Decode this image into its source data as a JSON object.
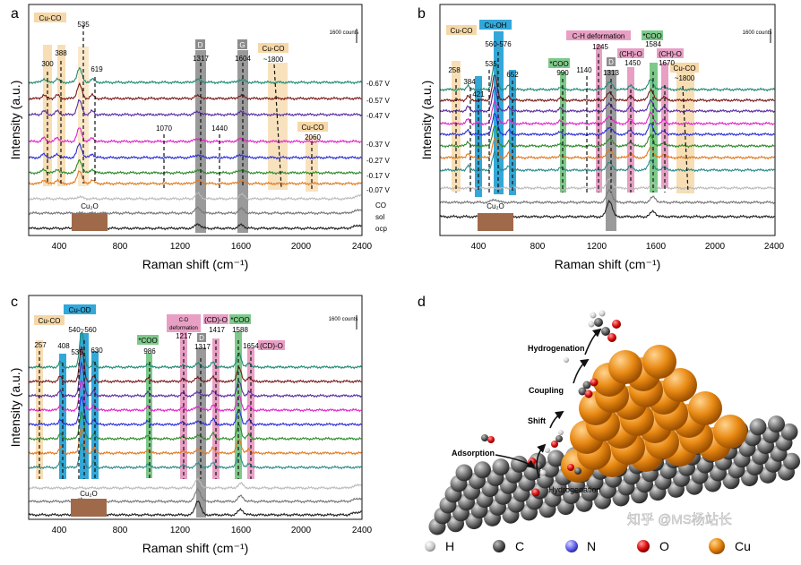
{
  "panels": {
    "a": {
      "label": "a",
      "xlabel": "Raman shift (cm⁻¹)",
      "ylabel": "Intensity (a.u.)",
      "scalebar": "1600 counts",
      "ticks": [
        "400",
        "800",
        "1200",
        "1600",
        "2000",
        "2400"
      ],
      "potentials": [
        "-0.67 V",
        "-0.57 V",
        "-0.47 V",
        "-0.37 V",
        "-0.27 V",
        "-0.17 V",
        "-0.07 V",
        "CO",
        "sol",
        "ocp"
      ],
      "tags": {
        "cuco1": "Cu-CO",
        "d": "D",
        "g": "G",
        "cuco2": "Cu-CO",
        "cuco3": "Cu-CO",
        "cu2o": "Cu₂O"
      },
      "peaks": [
        "300",
        "388",
        "535",
        "619",
        "1070",
        "1317",
        "1440",
        "1604",
        "~1800",
        "2060"
      ]
    },
    "b": {
      "label": "b",
      "xlabel": "Raman shift (cm⁻¹)",
      "ylabel": "Intensity (a.u.)",
      "scalebar": "1600 counts",
      "ticks": [
        "400",
        "800",
        "1200",
        "1600",
        "2000",
        "2400"
      ],
      "tags": {
        "cuco": "Cu-CO",
        "cuoh": "Cu-OH",
        "coo1": "*COO",
        "ch": "C-H deformation",
        "d": "D",
        "cho": "(CH)-O",
        "coo2": "*COO",
        "cho2": "(CH)-O",
        "cuco2": "Cu-CO",
        "cu2o": "Cu₂O"
      },
      "peaks": [
        "258",
        "384",
        "421",
        "535",
        "560-576",
        "652",
        "990",
        "1140",
        "1245",
        "1313",
        "1450",
        "1584",
        "1670",
        "~1800"
      ]
    },
    "c": {
      "label": "c",
      "xlabel": "Raman shift (cm⁻¹)",
      "ylabel": "Intensity (a.u.)",
      "scalebar": "1600 counts",
      "ticks": [
        "400",
        "800",
        "1200",
        "1600",
        "2000",
        "2400"
      ],
      "tags": {
        "cuco": "Cu-CO",
        "cuod": "Cu-OD",
        "coo1": "*COO",
        "cod1": "C-D",
        "cod2": "deformation",
        "cdo": "(CD)-O",
        "d": "D",
        "coo2": "*COO",
        "cdo2": "(CD)-O",
        "cu2o": "Cu₂O"
      },
      "peaks": [
        "257",
        "408",
        "535",
        "540~560",
        "630",
        "986",
        "1217",
        "1317",
        "1417",
        "1588",
        "1654"
      ]
    },
    "d": {
      "label": "d",
      "steps": [
        "Hydrogenation",
        "Coupling",
        "Shift",
        "Adsorption",
        "Hydrogenation"
      ],
      "legend": [
        "H",
        "C",
        "N",
        "O",
        "Cu"
      ],
      "watermark": "知乎 @MS杨站长"
    }
  },
  "colors": {
    "traces": [
      "#1f8a74",
      "#7a1a1a",
      "#5a2ca0",
      "#e024c8",
      "#2b2fd6",
      "#2e8a2a",
      "#e07a20",
      "#bbbbbb",
      "#777777",
      "#222222"
    ],
    "orange_band": "#f6d8a8",
    "blue_band": "#33a7d8",
    "green_band": "#7ec98a",
    "pink_band": "#e7a0c4",
    "gray_band": "#9a9a9a",
    "cu2o_box": "#a0694a"
  },
  "chart_data": [
    {
      "type": "line",
      "panel": "a",
      "xlabel": "Raman shift (cm⁻¹)",
      "ylabel": "Intensity (a.u.)",
      "xlim": [
        200,
        2400
      ],
      "series": [
        "-0.67 V",
        "-0.57 V",
        "-0.47 V",
        "-0.37 V",
        "-0.27 V",
        "-0.17 V",
        "-0.07 V",
        "CO",
        "sol",
        "ocp"
      ],
      "peaks": [
        300,
        388,
        535,
        619,
        1070,
        1317,
        1440,
        1604,
        1800,
        2060
      ]
    },
    {
      "type": "line",
      "panel": "b",
      "xlabel": "Raman shift (cm⁻¹)",
      "ylabel": "Intensity (a.u.)",
      "xlim": [
        200,
        2400
      ],
      "peaks": [
        258,
        384,
        421,
        535,
        568,
        652,
        990,
        1140,
        1245,
        1313,
        1450,
        1584,
        1670,
        1800
      ]
    },
    {
      "type": "line",
      "panel": "c",
      "xlabel": "Raman shift (cm⁻¹)",
      "ylabel": "Intensity (a.u.)",
      "xlim": [
        200,
        2400
      ],
      "peaks": [
        257,
        408,
        535,
        550,
        630,
        986,
        1217,
        1317,
        1417,
        1588,
        1654
      ]
    }
  ]
}
